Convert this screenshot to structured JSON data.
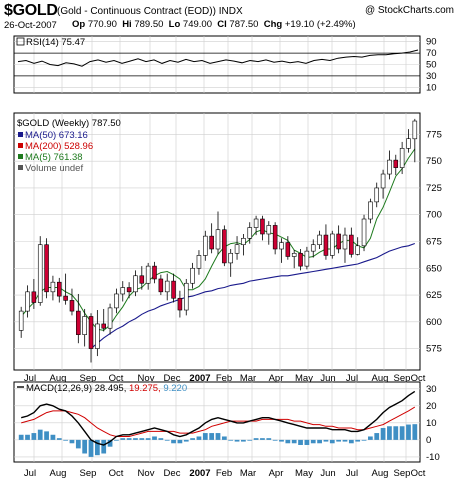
{
  "header": {
    "symbol": "$GOLD",
    "name": "(Gold - Continuous Contract (EOD))",
    "index": "INDX",
    "copyright": "@ StockCharts.com",
    "date": "26-Oct-2007",
    "open_label": "Op",
    "open": "770.90",
    "high_label": "Hi",
    "high": "789.50",
    "low_label": "Lo",
    "low": "749.00",
    "close_label": "Cl",
    "close": "787.50",
    "change_label": "Chg",
    "change": "+19.10 (+2.49%)"
  },
  "colors": {
    "up": "#ffffff",
    "down": "#cc0033",
    "ma50": "#1a1a8c",
    "ma200": "#cc0000",
    "ma5": "#1d7a1d",
    "volume": "#3f8fc4",
    "grid": "#cfcfcf"
  },
  "chart_data": [
    {
      "type": "line",
      "panel": "rsi",
      "legend": "RSI(14) 75.47",
      "ylim": [
        0,
        100
      ],
      "yticks": [
        10,
        30,
        50,
        70,
        90
      ],
      "ref_lines": [
        30,
        70
      ],
      "values": [
        55,
        57,
        52,
        56,
        50,
        48,
        53,
        51,
        47,
        55,
        58,
        54,
        57,
        52,
        56,
        60,
        55,
        58,
        52,
        57,
        54,
        59,
        55,
        57,
        52,
        55,
        58,
        56,
        53,
        57,
        55,
        58,
        54,
        56,
        53,
        55,
        52,
        57,
        59,
        57,
        61,
        63,
        64,
        63,
        66,
        67,
        67,
        69,
        70,
        72,
        75.47
      ]
    },
    {
      "type": "candlestick",
      "panel": "price",
      "legend_title": "$GOLD (Weekly) 787.50",
      "legend": [
        {
          "label": "MA(50) 673.16",
          "color": "#1a1a8c"
        },
        {
          "label": "MA(200) 528.96",
          "color": "#cc0000"
        },
        {
          "label": "MA(5) 761.38",
          "color": "#1d7a1d"
        },
        {
          "label": "Volume undef",
          "color": "#555555"
        }
      ],
      "ylim": [
        555,
        795
      ],
      "yticks": [
        575,
        600,
        625,
        650,
        675,
        700,
        725,
        750,
        775
      ],
      "x_labels": [
        "Jul",
        "Aug",
        "Sep",
        "Oct",
        "Nov",
        "Dec",
        "2007",
        "Feb",
        "Mar",
        "Apr",
        "May",
        "Jun",
        "Jul",
        "Aug",
        "Sep",
        "Oct"
      ],
      "candles": [
        {
          "o": 592,
          "h": 614,
          "l": 585,
          "c": 610
        },
        {
          "o": 610,
          "h": 634,
          "l": 604,
          "c": 628
        },
        {
          "o": 628,
          "h": 640,
          "l": 612,
          "c": 618
        },
        {
          "o": 618,
          "h": 680,
          "l": 615,
          "c": 672
        },
        {
          "o": 672,
          "h": 678,
          "l": 622,
          "c": 628
        },
        {
          "o": 628,
          "h": 643,
          "l": 620,
          "c": 637
        },
        {
          "o": 637,
          "h": 641,
          "l": 618,
          "c": 624
        },
        {
          "o": 624,
          "h": 645,
          "l": 616,
          "c": 620
        },
        {
          "o": 620,
          "h": 631,
          "l": 606,
          "c": 610
        },
        {
          "o": 610,
          "h": 626,
          "l": 580,
          "c": 588
        },
        {
          "o": 588,
          "h": 612,
          "l": 577,
          "c": 605
        },
        {
          "o": 605,
          "h": 608,
          "l": 562,
          "c": 575
        },
        {
          "o": 575,
          "h": 611,
          "l": 568,
          "c": 598
        },
        {
          "o": 598,
          "h": 612,
          "l": 591,
          "c": 594
        },
        {
          "o": 594,
          "h": 617,
          "l": 588,
          "c": 613
        },
        {
          "o": 613,
          "h": 631,
          "l": 608,
          "c": 626
        },
        {
          "o": 626,
          "h": 638,
          "l": 619,
          "c": 632
        },
        {
          "o": 632,
          "h": 637,
          "l": 622,
          "c": 628
        },
        {
          "o": 628,
          "h": 648,
          "l": 624,
          "c": 643
        },
        {
          "o": 643,
          "h": 652,
          "l": 630,
          "c": 636
        },
        {
          "o": 636,
          "h": 655,
          "l": 630,
          "c": 652
        },
        {
          "o": 652,
          "h": 656,
          "l": 636,
          "c": 640
        },
        {
          "o": 640,
          "h": 644,
          "l": 625,
          "c": 628
        },
        {
          "o": 628,
          "h": 645,
          "l": 620,
          "c": 638
        },
        {
          "o": 638,
          "h": 645,
          "l": 618,
          "c": 622
        },
        {
          "o": 622,
          "h": 629,
          "l": 604,
          "c": 611
        },
        {
          "o": 611,
          "h": 640,
          "l": 606,
          "c": 636
        },
        {
          "o": 636,
          "h": 655,
          "l": 631,
          "c": 650
        },
        {
          "o": 650,
          "h": 667,
          "l": 644,
          "c": 662
        },
        {
          "o": 662,
          "h": 685,
          "l": 657,
          "c": 680
        },
        {
          "o": 680,
          "h": 692,
          "l": 664,
          "c": 668
        },
        {
          "o": 668,
          "h": 703,
          "l": 663,
          "c": 686
        },
        {
          "o": 686,
          "h": 690,
          "l": 652,
          "c": 655
        },
        {
          "o": 655,
          "h": 668,
          "l": 642,
          "c": 664
        },
        {
          "o": 664,
          "h": 680,
          "l": 658,
          "c": 672
        },
        {
          "o": 672,
          "h": 682,
          "l": 662,
          "c": 678
        },
        {
          "o": 678,
          "h": 693,
          "l": 673,
          "c": 688
        },
        {
          "o": 688,
          "h": 699,
          "l": 681,
          "c": 696
        },
        {
          "o": 696,
          "h": 699,
          "l": 676,
          "c": 682
        },
        {
          "o": 682,
          "h": 694,
          "l": 672,
          "c": 690
        },
        {
          "o": 690,
          "h": 693,
          "l": 663,
          "c": 668
        },
        {
          "o": 668,
          "h": 678,
          "l": 655,
          "c": 674
        },
        {
          "o": 674,
          "h": 680,
          "l": 658,
          "c": 661
        },
        {
          "o": 661,
          "h": 667,
          "l": 650,
          "c": 664
        },
        {
          "o": 664,
          "h": 668,
          "l": 648,
          "c": 652
        },
        {
          "o": 652,
          "h": 670,
          "l": 649,
          "c": 666
        },
        {
          "o": 666,
          "h": 677,
          "l": 660,
          "c": 672
        },
        {
          "o": 672,
          "h": 685,
          "l": 668,
          "c": 681
        },
        {
          "o": 681,
          "h": 691,
          "l": 658,
          "c": 662
        },
        {
          "o": 662,
          "h": 685,
          "l": 659,
          "c": 682
        },
        {
          "o": 682,
          "h": 690,
          "l": 664,
          "c": 668
        },
        {
          "o": 668,
          "h": 688,
          "l": 655,
          "c": 681
        },
        {
          "o": 681,
          "h": 688,
          "l": 660,
          "c": 663
        },
        {
          "o": 663,
          "h": 679,
          "l": 662,
          "c": 671
        },
        {
          "o": 671,
          "h": 700,
          "l": 666,
          "c": 696
        },
        {
          "o": 696,
          "h": 715,
          "l": 692,
          "c": 712
        },
        {
          "o": 712,
          "h": 730,
          "l": 707,
          "c": 725
        },
        {
          "o": 725,
          "h": 742,
          "l": 715,
          "c": 738
        },
        {
          "o": 738,
          "h": 760,
          "l": 733,
          "c": 751
        },
        {
          "o": 751,
          "h": 756,
          "l": 737,
          "c": 744
        },
        {
          "o": 744,
          "h": 768,
          "l": 738,
          "c": 762
        },
        {
          "o": 762,
          "h": 780,
          "l": 758,
          "c": 771
        },
        {
          "o": 770.9,
          "h": 789.5,
          "l": 749,
          "c": 787.5
        }
      ],
      "ma5": [
        605,
        612,
        618,
        628,
        632,
        632,
        632,
        628,
        625,
        618,
        608,
        600,
        593,
        592,
        597,
        606,
        614,
        624,
        630,
        632,
        638,
        643,
        646,
        647,
        644,
        640,
        630,
        630,
        633,
        640,
        652,
        663,
        670,
        673,
        674,
        672,
        677,
        684,
        686,
        683,
        682,
        679,
        676,
        667,
        664,
        660,
        661,
        665,
        668,
        668,
        673,
        676,
        676,
        671,
        669,
        678,
        696,
        707,
        721,
        736,
        743,
        753,
        761.38
      ],
      "ma50": [
        null,
        null,
        null,
        null,
        null,
        null,
        null,
        null,
        null,
        null,
        null,
        575,
        580,
        585,
        589,
        593,
        596,
        600,
        603,
        607,
        610,
        612,
        615,
        617,
        619,
        621,
        623,
        624,
        626,
        628,
        629,
        631,
        632,
        634,
        635,
        636,
        638,
        639,
        640,
        641,
        642,
        643,
        643,
        644,
        645,
        646,
        647,
        648,
        649,
        650,
        651,
        652,
        653,
        654,
        656,
        658,
        660,
        663,
        666,
        668,
        670,
        671,
        673.16
      ]
    },
    {
      "type": "line",
      "panel": "macd",
      "legend": "MACD(12,26,9)",
      "legend_values": [
        "28.495",
        "19.275",
        "9.220"
      ],
      "ylim": [
        -13,
        34
      ],
      "yticks": [
        -10,
        0,
        10,
        20,
        30
      ],
      "series": [
        {
          "name": "MACD",
          "values": [
            13,
            14,
            16,
            20,
            21,
            20,
            18,
            17,
            14,
            10,
            5,
            0,
            -2,
            -3,
            -1,
            2,
            3,
            3,
            4,
            5,
            6,
            7,
            6,
            5,
            3,
            2,
            3,
            5,
            7,
            10,
            12,
            13,
            12,
            11,
            10,
            10,
            11,
            12,
            13,
            13,
            12,
            11,
            10,
            9,
            8,
            7,
            7,
            7,
            7,
            6,
            6,
            6,
            5,
            5,
            6,
            9,
            12,
            16,
            19,
            21,
            23,
            26,
            28.495
          ]
        },
        {
          "name": "signal",
          "values": [
            10,
            11,
            12,
            14,
            16,
            17,
            17,
            17,
            16,
            15,
            13,
            10,
            7,
            5,
            3,
            2,
            2,
            2,
            3,
            4,
            5,
            5,
            5,
            5,
            5,
            4,
            4,
            4,
            5,
            6,
            8,
            9,
            10,
            11,
            11,
            11,
            11,
            11,
            12,
            12,
            12,
            12,
            12,
            11,
            11,
            10,
            9,
            9,
            8,
            8,
            7,
            7,
            7,
            6,
            6,
            7,
            8,
            9,
            11,
            13,
            15,
            17,
            19.275
          ]
        },
        {
          "name": "histogram",
          "values": [
            3,
            3,
            4,
            6,
            5,
            3,
            1,
            0,
            -2,
            -5,
            -8,
            -10,
            -9,
            -8,
            -4,
            0,
            1,
            1,
            1,
            1,
            1,
            2,
            1,
            0,
            -2,
            -2,
            -1,
            1,
            2,
            4,
            4,
            4,
            2,
            0,
            -1,
            -1,
            0,
            1,
            1,
            1,
            0,
            -1,
            -2,
            -2,
            -3,
            -3,
            -2,
            -2,
            -1,
            -2,
            -1,
            -1,
            -2,
            -1,
            0,
            2,
            4,
            7,
            8,
            8,
            8,
            9,
            9.22
          ]
        }
      ]
    }
  ]
}
